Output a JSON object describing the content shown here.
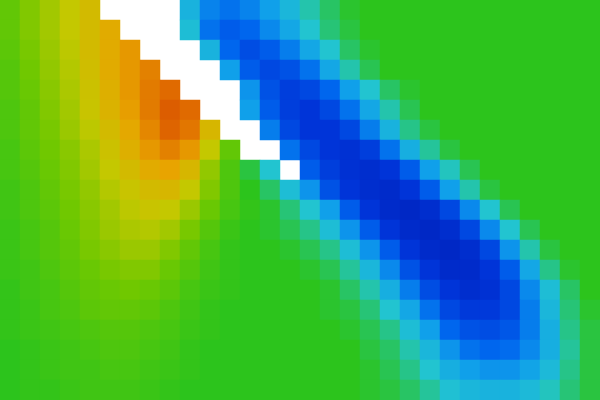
{
  "chart_data": {
    "type": "heatmap",
    "tick_labels": false,
    "zlim": [
      0,
      100
    ],
    "cells": [
      [
        58,
        62,
        66,
        70,
        74,
        null,
        null,
        null,
        null,
        35,
        25,
        22,
        25,
        30,
        36,
        42,
        46,
        49,
        50,
        50,
        50,
        50,
        50,
        50,
        50,
        50,
        50,
        50,
        50,
        50
      ],
      [
        58,
        62,
        66,
        70,
        74,
        78,
        null,
        null,
        null,
        38,
        22,
        18,
        20,
        26,
        32,
        40,
        45,
        48,
        50,
        50,
        50,
        50,
        50,
        50,
        50,
        50,
        50,
        50,
        50,
        50
      ],
      [
        57,
        61,
        65,
        69,
        74,
        78,
        82,
        null,
        null,
        null,
        35,
        20,
        15,
        18,
        24,
        32,
        40,
        46,
        49,
        50,
        50,
        50,
        50,
        50,
        50,
        50,
        50,
        50,
        50,
        50
      ],
      [
        56,
        60,
        64,
        68,
        73,
        78,
        82,
        86,
        null,
        null,
        null,
        30,
        18,
        14,
        16,
        22,
        32,
        42,
        47,
        50,
        50,
        50,
        50,
        50,
        50,
        50,
        50,
        50,
        50,
        50
      ],
      [
        56,
        59,
        63,
        67,
        72,
        77,
        82,
        87,
        90,
        null,
        null,
        null,
        28,
        16,
        12,
        14,
        20,
        30,
        40,
        46,
        49,
        50,
        50,
        50,
        50,
        50,
        50,
        50,
        50,
        50
      ],
      [
        55,
        58,
        62,
        66,
        71,
        76,
        81,
        87,
        92,
        90,
        null,
        null,
        30,
        18,
        12,
        10,
        14,
        22,
        32,
        42,
        47,
        50,
        50,
        50,
        50,
        50,
        50,
        50,
        50,
        50
      ],
      [
        55,
        58,
        61,
        65,
        69,
        74,
        79,
        85,
        91,
        88,
        75,
        null,
        null,
        24,
        14,
        10,
        10,
        14,
        24,
        35,
        44,
        48,
        50,
        50,
        50,
        50,
        50,
        50,
        50,
        50
      ],
      [
        54,
        57,
        60,
        63,
        67,
        72,
        77,
        82,
        86,
        82,
        70,
        58,
        null,
        null,
        22,
        14,
        10,
        9,
        12,
        22,
        34,
        43,
        48,
        50,
        50,
        50,
        50,
        50,
        50,
        50
      ],
      [
        54,
        56,
        59,
        62,
        66,
        70,
        74,
        78,
        80,
        75,
        64,
        55,
        48,
        40,
        null,
        18,
        12,
        9,
        8,
        10,
        18,
        30,
        41,
        47,
        50,
        50,
        50,
        50,
        50,
        50
      ],
      [
        53,
        55,
        58,
        61,
        64,
        68,
        71,
        74,
        75,
        70,
        62,
        55,
        50,
        46,
        38,
        28,
        16,
        10,
        8,
        7,
        10,
        18,
        30,
        42,
        48,
        50,
        50,
        50,
        50,
        50
      ],
      [
        53,
        55,
        57,
        60,
        63,
        66,
        69,
        71,
        70,
        65,
        59,
        54,
        51,
        49,
        45,
        40,
        30,
        18,
        10,
        7,
        6,
        8,
        14,
        26,
        40,
        47,
        50,
        50,
        50,
        50
      ],
      [
        52,
        54,
        56,
        59,
        62,
        65,
        67,
        68,
        66,
        61,
        56,
        52,
        50,
        49,
        47,
        44,
        38,
        28,
        18,
        10,
        7,
        6,
        8,
        14,
        26,
        40,
        47,
        50,
        50,
        50
      ],
      [
        52,
        54,
        56,
        58,
        61,
        63,
        65,
        65,
        62,
        58,
        54,
        51,
        50,
        50,
        49,
        47,
        44,
        38,
        28,
        18,
        10,
        7,
        6,
        8,
        14,
        28,
        42,
        48,
        50,
        50
      ],
      [
        52,
        53,
        55,
        57,
        59,
        61,
        62,
        62,
        59,
        56,
        53,
        51,
        50,
        50,
        50,
        49,
        47,
        43,
        36,
        26,
        16,
        10,
        7,
        7,
        10,
        18,
        32,
        44,
        49,
        50
      ],
      [
        51,
        53,
        54,
        56,
        58,
        59,
        60,
        59,
        57,
        54,
        52,
        51,
        50,
        50,
        50,
        50,
        49,
        46,
        42,
        34,
        24,
        15,
        10,
        8,
        9,
        14,
        26,
        38,
        46,
        50
      ],
      [
        51,
        52,
        54,
        55,
        57,
        58,
        58,
        57,
        55,
        53,
        51,
        50,
        50,
        50,
        50,
        50,
        49,
        48,
        45,
        40,
        32,
        22,
        14,
        11,
        11,
        14,
        24,
        36,
        45,
        49
      ],
      [
        51,
        52,
        53,
        54,
        55,
        56,
        56,
        55,
        54,
        52,
        51,
        50,
        50,
        50,
        50,
        50,
        50,
        49,
        47,
        44,
        38,
        30,
        20,
        16,
        15,
        17,
        24,
        34,
        44,
        48
      ],
      [
        50,
        51,
        52,
        53,
        54,
        55,
        55,
        54,
        53,
        51,
        50,
        50,
        50,
        50,
        50,
        50,
        50,
        50,
        48,
        46,
        42,
        36,
        28,
        22,
        20,
        21,
        26,
        34,
        43,
        48
      ],
      [
        50,
        51,
        52,
        53,
        53,
        54,
        54,
        53,
        52,
        51,
        50,
        50,
        50,
        50,
        50,
        50,
        50,
        50,
        49,
        47,
        44,
        40,
        34,
        30,
        28,
        28,
        31,
        37,
        44,
        48
      ],
      [
        50,
        51,
        51,
        52,
        53,
        53,
        53,
        52,
        51,
        50,
        50,
        50,
        50,
        50,
        50,
        50,
        50,
        50,
        49,
        48,
        46,
        43,
        39,
        36,
        35,
        35,
        37,
        41,
        45,
        48
      ]
    ]
  }
}
